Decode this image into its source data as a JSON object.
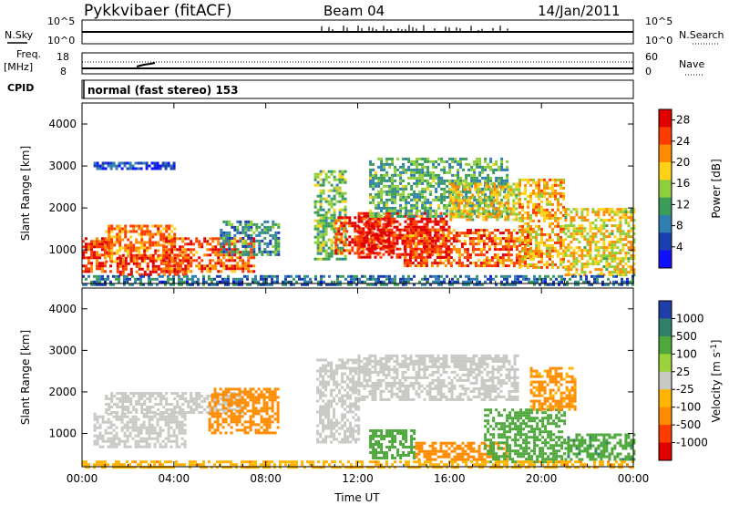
{
  "header": {
    "station": "Pykkvibaer (fitACF)",
    "beam": "Beam 04",
    "date": "14/Jan/2011"
  },
  "left_labels": {
    "nsky": "N.Sky",
    "freq": "Freq.",
    "freq_unit": "[MHz]",
    "cpid": "CPID"
  },
  "right_labels": {
    "nsearch": "N.Search",
    "nave": "Nave"
  },
  "noise_axis": {
    "top": "10^5",
    "bottom": "10^0",
    "right_top": "10^5",
    "right_bottom": "10^0"
  },
  "freq_axis": {
    "left_ticks": [
      "18",
      "8"
    ],
    "right_ticks": [
      "60",
      "0"
    ]
  },
  "cpid_text": "normal (fast stereo) 153",
  "colors": {
    "axis": "#000000",
    "velocity_ground_scatter": "#c8c8c4"
  },
  "chart_data": [
    {
      "type": "heatmap",
      "panel": "power",
      "ylabel": "Slant Range [km]",
      "ylim": [
        200,
        4500
      ],
      "y_ticks": [
        "1000",
        "2000",
        "3000",
        "4000"
      ],
      "x_ticks": [
        "00:00",
        "04:00",
        "08:00",
        "12:00",
        "16:00",
        "20:00",
        "00:00"
      ],
      "xlim_hours": [
        0,
        24
      ],
      "colorbar": {
        "label": "Power [dB]",
        "ticks": [
          "4",
          "8",
          "12",
          "16",
          "20",
          "24",
          "28"
        ],
        "range": [
          0,
          30
        ],
        "colors": [
          "#1010ff",
          "#1a3fb0",
          "#2f7fb0",
          "#3c9c5a",
          "#8fcf3c",
          "#ffd21a",
          "#ff8c00",
          "#ff3c00",
          "#e00000"
        ]
      },
      "regions": [
        {
          "t": [
            0.0,
            1.2
          ],
          "range": [
            500,
            1300
          ],
          "level": 26
        },
        {
          "t": [
            1.0,
            4.0
          ],
          "range": [
            700,
            1600
          ],
          "level": 22
        },
        {
          "t": [
            1.5,
            4.5
          ],
          "range": [
            400,
            900
          ],
          "level": 27
        },
        {
          "t": [
            3.5,
            7.5
          ],
          "range": [
            500,
            1300
          ],
          "level": 24
        },
        {
          "t": [
            6.0,
            8.5
          ],
          "range": [
            900,
            1700
          ],
          "level": 10
        },
        {
          "t": [
            0.5,
            4.0
          ],
          "range": [
            2950,
            3100
          ],
          "level": 5
        },
        {
          "t": [
            10.1,
            11.5
          ],
          "range": [
            800,
            2900
          ],
          "level": 14
        },
        {
          "t": [
            11.0,
            13.5
          ],
          "range": [
            900,
            1800
          ],
          "level": 26
        },
        {
          "t": [
            12.0,
            16.0
          ],
          "range": [
            800,
            1900
          ],
          "level": 28
        },
        {
          "t": [
            12.5,
            18.5
          ],
          "range": [
            1800,
            3200
          ],
          "level": 12
        },
        {
          "t": [
            14.0,
            19.5
          ],
          "range": [
            600,
            1500
          ],
          "level": 24
        },
        {
          "t": [
            16.0,
            19.0
          ],
          "range": [
            1700,
            2600
          ],
          "level": 18
        },
        {
          "t": [
            19.0,
            21.0
          ],
          "range": [
            600,
            2700
          ],
          "level": 20
        },
        {
          "t": [
            21.0,
            24.0
          ],
          "range": [
            400,
            2000
          ],
          "level": 18
        },
        {
          "t": [
            0.0,
            24.0
          ],
          "range": [
            200,
            400
          ],
          "level": 8
        }
      ]
    },
    {
      "type": "heatmap",
      "panel": "velocity",
      "ylabel": "Slant Range [km]",
      "ylim": [
        200,
        4500
      ],
      "y_ticks": [
        "1000",
        "2000",
        "3000",
        "4000"
      ],
      "x_ticks": [
        "00:00",
        "04:00",
        "08:00",
        "12:00",
        "16:00",
        "20:00",
        "00:00"
      ],
      "xlabel": "Time UT",
      "xlim_hours": [
        0,
        24
      ],
      "colorbar": {
        "label": "Velocity [m s^-1]",
        "ticks": [
          "1000",
          "500",
          "100",
          "25",
          "-25",
          "-100",
          "-500",
          "-1000"
        ],
        "colors": [
          "#1f3fa8",
          "#2f7f6a",
          "#4ea83c",
          "#9ad33a",
          "#c8c8c4",
          "#ffb400",
          "#ff8c00",
          "#ff3c00",
          "#e00000"
        ]
      },
      "regions": [
        {
          "t": [
            0.5,
            4.5
          ],
          "range": [
            700,
            1500
          ],
          "level": -10
        },
        {
          "t": [
            1.0,
            7.0
          ],
          "range": [
            1500,
            2000
          ],
          "level": 10
        },
        {
          "t": [
            5.5,
            8.5
          ],
          "range": [
            1000,
            2100
          ],
          "level": -300
        },
        {
          "t": [
            10.2,
            12.0
          ],
          "range": [
            800,
            2800
          ],
          "level": 10
        },
        {
          "t": [
            12.0,
            19.0
          ],
          "range": [
            1800,
            2900
          ],
          "level": 5
        },
        {
          "t": [
            12.5,
            14.5
          ],
          "range": [
            400,
            1100
          ],
          "level": 300
        },
        {
          "t": [
            14.5,
            18.5
          ],
          "range": [
            350,
            800
          ],
          "level": -200
        },
        {
          "t": [
            17.5,
            21.0
          ],
          "range": [
            300,
            1600
          ],
          "level": 150
        },
        {
          "t": [
            19.5,
            21.5
          ],
          "range": [
            1600,
            2600
          ],
          "level": -120
        },
        {
          "t": [
            21.0,
            24.0
          ],
          "range": [
            400,
            1000
          ],
          "level": 400
        },
        {
          "t": [
            0.0,
            24.0
          ],
          "range": [
            200,
            350
          ],
          "level": -80
        }
      ]
    }
  ]
}
